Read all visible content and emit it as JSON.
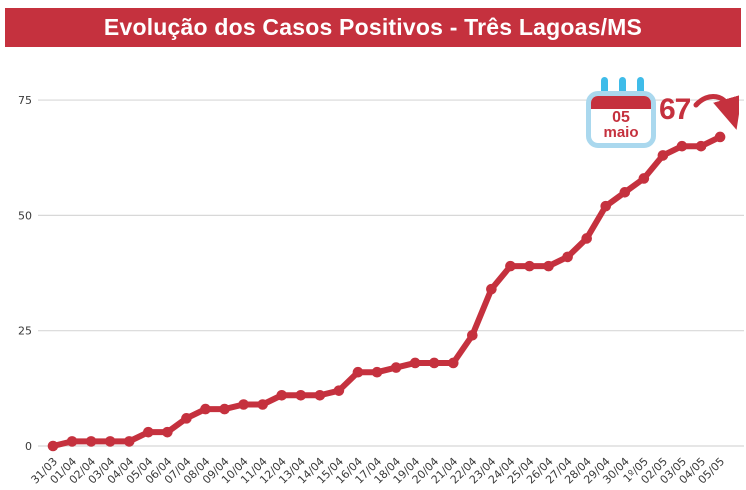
{
  "header": {
    "title": "Evolução dos Casos Positivos - Três Lagoas/MS"
  },
  "colors": {
    "accent_red": "#c5313e",
    "calendar_border_blue": "#aad8ee",
    "calendar_prong_blue": "#3fbce9",
    "gridline": "#d8d8d8",
    "axis_text": "#3a3a3a",
    "background": "#ffffff"
  },
  "annotation": {
    "calendar_day": "05",
    "calendar_month": "maio",
    "value_label": "67"
  },
  "chart_data": {
    "type": "line",
    "title": "Evolução dos Casos Positivos - Três Lagoas/MS",
    "xlabel": "",
    "ylabel": "",
    "categories": [
      "31/03",
      "01/04",
      "02/04",
      "03/04",
      "04/04",
      "05/04",
      "06/04",
      "07/04",
      "08/04",
      "09/04",
      "10/04",
      "11/04",
      "12/04",
      "13/04",
      "14/04",
      "15/04",
      "16/04",
      "17/04",
      "18/04",
      "19/04",
      "20/04",
      "21/04",
      "22/04",
      "23/04",
      "24/04",
      "25/04",
      "26/04",
      "27/04",
      "28/04",
      "29/04",
      "30/04",
      "1º/05",
      "02/05",
      "03/05",
      "04/05",
      "05/05"
    ],
    "values": [
      0,
      1,
      1,
      1,
      1,
      3,
      3,
      6,
      8,
      8,
      9,
      9,
      11,
      11,
      11,
      12,
      16,
      16,
      17,
      18,
      18,
      18,
      24,
      34,
      39,
      39,
      39,
      41,
      45,
      52,
      55,
      58,
      63,
      65,
      65,
      67
    ],
    "ylim": [
      0,
      80
    ],
    "yticks": [
      0,
      25,
      50,
      75
    ],
    "grid": true,
    "legend": false,
    "series_color": "#c5313e",
    "final_point_label": "67"
  }
}
